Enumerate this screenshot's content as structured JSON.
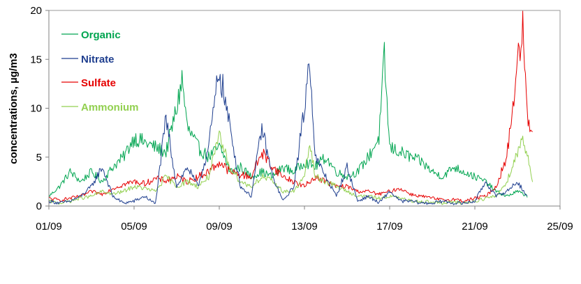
{
  "chart_data": {
    "type": "line",
    "title": "",
    "xlabel": "",
    "ylabel": "concentrations, µg/m3",
    "x_range_days": [
      0,
      24
    ],
    "xlim": [
      "01/09",
      "25/09"
    ],
    "ylim": [
      0,
      20
    ],
    "x_ticks": [
      "01/09",
      "05/09",
      "09/09",
      "13/09",
      "17/09",
      "21/09",
      "25/09"
    ],
    "y_ticks": [
      "0",
      "5",
      "10",
      "15",
      "20"
    ],
    "grid": false,
    "legend_position": "top-left, inside plot",
    "series": [
      {
        "name": "Organic",
        "color": "#00a550",
        "points": [
          [
            "01/09",
            1.0
          ],
          [
            "01/09 12h",
            2.0
          ],
          [
            "02/09",
            3.5
          ],
          [
            "02/09 12h",
            2.5
          ],
          [
            "03/09",
            3.5
          ],
          [
            "03/09 12h",
            2.5
          ],
          [
            "04/09",
            4.0
          ],
          [
            "04/09 12h",
            5.0
          ],
          [
            "05/09",
            7.0
          ],
          [
            "05/09 12h",
            6.5
          ],
          [
            "06/09",
            6.0
          ],
          [
            "06/09 12h",
            5.5
          ],
          [
            "07/09",
            10.0
          ],
          [
            "07/09 06h",
            13.0
          ],
          [
            "07/09 12h",
            8.0
          ],
          [
            "08/09",
            6.0
          ],
          [
            "08/09 12h",
            5.0
          ],
          [
            "09/09",
            6.0
          ],
          [
            "09/09 06h",
            5.0
          ],
          [
            "09/09 12h",
            3.5
          ],
          [
            "10/09",
            4.0
          ],
          [
            "10/09 12h",
            3.0
          ],
          [
            "11/09",
            3.5
          ],
          [
            "11/09 12h",
            3.0
          ],
          [
            "12/09",
            4.0
          ],
          [
            "12/09 12h",
            3.5
          ],
          [
            "13/09",
            4.5
          ],
          [
            "13/09 12h",
            4.0
          ],
          [
            "14/09",
            5.0
          ],
          [
            "14/09 12h",
            3.5
          ],
          [
            "15/09",
            3.0
          ],
          [
            "15/09 12h",
            3.5
          ],
          [
            "16/09",
            5.0
          ],
          [
            "16/09 12h",
            7.0
          ],
          [
            "16/09 18h",
            15.0
          ],
          [
            "17/09",
            6.0
          ],
          [
            "17/09 12h",
            5.5
          ],
          [
            "18/09",
            5.0
          ],
          [
            "18/09 12h",
            4.5
          ],
          [
            "19/09",
            3.5
          ],
          [
            "19/09 12h",
            3.0
          ],
          [
            "20/09",
            4.0
          ],
          [
            "20/09 12h",
            3.5
          ],
          [
            "21/09",
            3.0
          ],
          [
            "21/09 12h",
            2.5
          ],
          [
            "22/09",
            1.5
          ],
          [
            "22/09 12h",
            1.0
          ],
          [
            "23/09",
            1.5
          ],
          [
            "23/09 12h",
            1.0
          ]
        ]
      },
      {
        "name": "Nitrate",
        "color": "#1f3f8f",
        "points": [
          [
            "01/09",
            0.5
          ],
          [
            "01/09 12h",
            0.3
          ],
          [
            "02/09",
            0.5
          ],
          [
            "02/09 12h",
            1.0
          ],
          [
            "03/09",
            2.0
          ],
          [
            "03/09 12h",
            4.0
          ],
          [
            "04/09",
            1.0
          ],
          [
            "04/09 12h",
            0.3
          ],
          [
            "05/09",
            0.5
          ],
          [
            "05/09 12h",
            1.0
          ],
          [
            "06/09",
            0.2
          ],
          [
            "06/09 12h",
            9.0
          ],
          [
            "07/09",
            2.0
          ],
          [
            "07/09 12h",
            4.0
          ],
          [
            "08/09",
            2.0
          ],
          [
            "08/09 12h",
            6.0
          ],
          [
            "09/09",
            14.0
          ],
          [
            "09/09 12h",
            8.0
          ],
          [
            "10/09",
            2.0
          ],
          [
            "10/09 12h",
            1.0
          ],
          [
            "11/09",
            8.0
          ],
          [
            "11/09 12h",
            3.0
          ],
          [
            "12/09",
            0.5
          ],
          [
            "12/09 12h",
            2.0
          ],
          [
            "13/09",
            10.0
          ],
          [
            "13/09 06h",
            15.5
          ],
          [
            "13/09 12h",
            5.0
          ],
          [
            "14/09",
            3.0
          ],
          [
            "14/09 12h",
            1.0
          ],
          [
            "15/09",
            4.0
          ],
          [
            "15/09 12h",
            0.5
          ],
          [
            "16/09",
            1.0
          ],
          [
            "16/09 12h",
            0.3
          ],
          [
            "17/09",
            1.5
          ],
          [
            "17/09 12h",
            0.5
          ],
          [
            "18/09",
            0.5
          ],
          [
            "18/09 12h",
            0.3
          ],
          [
            "19/09",
            0.3
          ],
          [
            "19/09 12h",
            0.5
          ],
          [
            "20/09",
            0.3
          ],
          [
            "20/09 12h",
            0.3
          ],
          [
            "21/09",
            0.5
          ],
          [
            "21/09 12h",
            2.5
          ],
          [
            "22/09",
            1.0
          ],
          [
            "22/09 12h",
            1.5
          ],
          [
            "23/09",
            2.5
          ],
          [
            "23/09 12h",
            0.8
          ]
        ]
      },
      {
        "name": "Sulfate",
        "color": "#e60000",
        "points": [
          [
            "01/09",
            0.8
          ],
          [
            "01/09 12h",
            0.6
          ],
          [
            "02/09",
            0.8
          ],
          [
            "02/09 12h",
            1.0
          ],
          [
            "03/09",
            1.5
          ],
          [
            "03/09 12h",
            1.2
          ],
          [
            "04/09",
            1.8
          ],
          [
            "04/09 12h",
            2.2
          ],
          [
            "05/09",
            2.5
          ],
          [
            "05/09 12h",
            2.3
          ],
          [
            "06/09",
            2.8
          ],
          [
            "06/09 12h",
            2.6
          ],
          [
            "07/09",
            3.0
          ],
          [
            "07/09 12h",
            2.5
          ],
          [
            "08/09",
            3.0
          ],
          [
            "08/09 12h",
            3.5
          ],
          [
            "09/09",
            4.5
          ],
          [
            "09/09 12h",
            3.5
          ],
          [
            "10/09",
            3.2
          ],
          [
            "10/09 12h",
            3.0
          ],
          [
            "11/09",
            5.5
          ],
          [
            "11/09 12h",
            4.0
          ],
          [
            "12/09",
            3.0
          ],
          [
            "12/09 12h",
            2.5
          ],
          [
            "13/09",
            2.0
          ],
          [
            "13/09 12h",
            3.0
          ],
          [
            "14/09",
            2.5
          ],
          [
            "14/09 12h",
            2.0
          ],
          [
            "15/09",
            2.0
          ],
          [
            "15/09 12h",
            1.5
          ],
          [
            "16/09",
            1.5
          ],
          [
            "16/09 12h",
            1.2
          ],
          [
            "17/09",
            1.5
          ],
          [
            "17/09 12h",
            1.8
          ],
          [
            "18/09",
            1.2
          ],
          [
            "18/09 12h",
            1.0
          ],
          [
            "19/09",
            0.8
          ],
          [
            "19/09 12h",
            0.6
          ],
          [
            "20/09",
            0.7
          ],
          [
            "20/09 12h",
            0.5
          ],
          [
            "21/09",
            0.8
          ],
          [
            "21/09 12h",
            1.0
          ],
          [
            "22/09",
            2.0
          ],
          [
            "22/09 12h",
            5.0
          ],
          [
            "23/09",
            14.5
          ],
          [
            "23/09 06h",
            18.0
          ],
          [
            "23/09 12h",
            8.0
          ],
          [
            "23/09 18h",
            8.5
          ]
        ]
      },
      {
        "name": "Ammonium",
        "color": "#92d050",
        "points": [
          [
            "01/09",
            0.5
          ],
          [
            "01/09 12h",
            0.3
          ],
          [
            "02/09",
            0.5
          ],
          [
            "02/09 12h",
            0.8
          ],
          [
            "03/09",
            1.0
          ],
          [
            "03/09 12h",
            1.5
          ],
          [
            "04/09",
            1.2
          ],
          [
            "04/09 12h",
            1.5
          ],
          [
            "05/09",
            2.0
          ],
          [
            "05/09 12h",
            1.8
          ],
          [
            "06/09",
            1.5
          ],
          [
            "06/09 12h",
            3.0
          ],
          [
            "07/09",
            2.0
          ],
          [
            "07/09 12h",
            2.5
          ],
          [
            "08/09",
            2.0
          ],
          [
            "08/09 12h",
            3.0
          ],
          [
            "09/09",
            7.0
          ],
          [
            "09/09 12h",
            4.0
          ],
          [
            "10/09",
            2.5
          ],
          [
            "10/09 12h",
            2.0
          ],
          [
            "11/09",
            3.0
          ],
          [
            "11/09 12h",
            2.5
          ],
          [
            "12/09",
            1.5
          ],
          [
            "12/09 12h",
            1.5
          ],
          [
            "13/09",
            3.0
          ],
          [
            "13/09 06h",
            6.5
          ],
          [
            "13/09 12h",
            3.0
          ],
          [
            "14/09",
            2.5
          ],
          [
            "14/09 12h",
            2.0
          ],
          [
            "15/09",
            1.5
          ],
          [
            "15/09 12h",
            1.0
          ],
          [
            "16/09",
            1.0
          ],
          [
            "16/09 12h",
            0.8
          ],
          [
            "17/09",
            1.0
          ],
          [
            "17/09 12h",
            0.8
          ],
          [
            "18/09",
            0.5
          ],
          [
            "18/09 12h",
            0.5
          ],
          [
            "19/09",
            0.4
          ],
          [
            "19/09 12h",
            0.3
          ],
          [
            "20/09",
            0.4
          ],
          [
            "20/09 12h",
            0.3
          ],
          [
            "21/09",
            0.5
          ],
          [
            "21/09 12h",
            0.8
          ],
          [
            "22/09",
            1.0
          ],
          [
            "22/09 12h",
            2.5
          ],
          [
            "23/09",
            5.5
          ],
          [
            "23/09 06h",
            7.0
          ],
          [
            "23/09 12h",
            5.0
          ],
          [
            "23/09 18h",
            2.0
          ]
        ]
      }
    ]
  }
}
